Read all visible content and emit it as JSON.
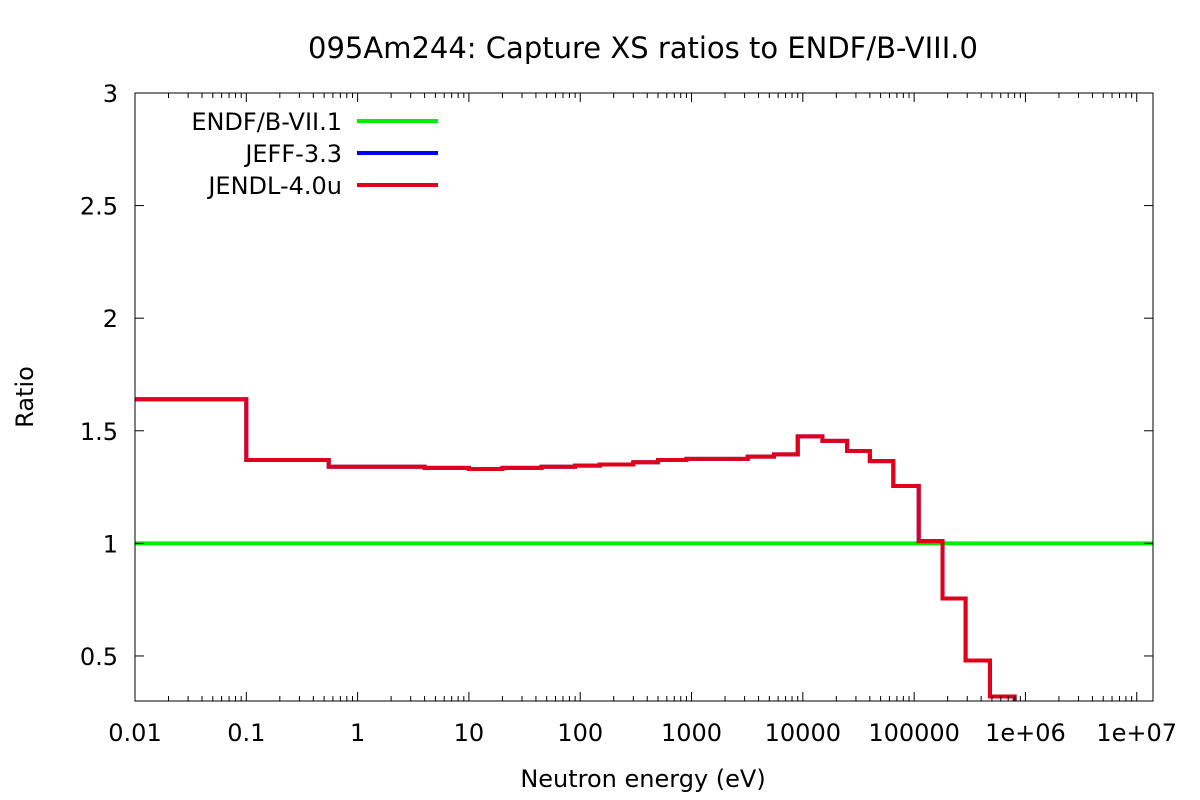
{
  "chart_data": {
    "type": "line",
    "title": "095Am244: Capture XS ratios to ENDF/B-VIII.0",
    "xlabel": "Neutron energy (eV)",
    "ylabel": "Ratio",
    "x_scale": "log",
    "xlim": [
      0.01,
      14000000
    ],
    "ylim": [
      0.3,
      3
    ],
    "grid": false,
    "legend_position": "top-left",
    "x_ticks": [
      {
        "value": 0.01,
        "label": "0.01"
      },
      {
        "value": 0.1,
        "label": "0.1"
      },
      {
        "value": 1,
        "label": "1"
      },
      {
        "value": 10,
        "label": "10"
      },
      {
        "value": 100,
        "label": "100"
      },
      {
        "value": 1000,
        "label": "1000"
      },
      {
        "value": 10000,
        "label": "10000"
      },
      {
        "value": 100000,
        "label": "100000"
      },
      {
        "value": 1000000,
        "label": "1e+06"
      },
      {
        "value": 10000000,
        "label": "1e+07"
      }
    ],
    "y_ticks": [
      {
        "value": 0.5,
        "label": "0.5"
      },
      {
        "value": 1,
        "label": "1"
      },
      {
        "value": 1.5,
        "label": "1.5"
      },
      {
        "value": 2,
        "label": "2"
      },
      {
        "value": 2.5,
        "label": "2.5"
      },
      {
        "value": 3,
        "label": "3"
      }
    ],
    "series": [
      {
        "name": "ENDF/B-VII.1",
        "color": "#00ee00",
        "step": true,
        "x": [
          0.01,
          14000000
        ],
        "y": [
          1.0,
          1.0
        ]
      },
      {
        "name": "JEFF-3.3",
        "color": "#0000ee",
        "step": true,
        "x": [
          0.01,
          0.1,
          0.55,
          4.0,
          10.0,
          20.0,
          45.0,
          90.0,
          150.0,
          300.0,
          500.0,
          900.0,
          3200.0,
          5500.0,
          9000.0,
          15000.0,
          25000.0,
          40000.0,
          65000.0,
          110000.0,
          180000.0,
          290000.0,
          480000.0,
          800000.0
        ],
        "y": [
          1.64,
          1.37,
          1.34,
          1.335,
          1.33,
          1.335,
          1.34,
          1.345,
          1.35,
          1.36,
          1.37,
          1.375,
          1.385,
          1.395,
          1.475,
          1.455,
          1.41,
          1.365,
          1.255,
          1.01,
          0.755,
          0.48,
          0.32,
          0.3
        ]
      },
      {
        "name": "JENDL-4.0u",
        "color": "#e0001a",
        "step": true,
        "x": [
          0.01,
          0.1,
          0.55,
          4.0,
          10.0,
          20.0,
          45.0,
          90.0,
          150.0,
          300.0,
          500.0,
          900.0,
          3200.0,
          5500.0,
          9000.0,
          15000.0,
          25000.0,
          40000.0,
          65000.0,
          110000.0,
          180000.0,
          290000.0,
          480000.0,
          800000.0
        ],
        "y": [
          1.64,
          1.37,
          1.34,
          1.335,
          1.33,
          1.335,
          1.34,
          1.345,
          1.35,
          1.36,
          1.37,
          1.375,
          1.385,
          1.395,
          1.475,
          1.455,
          1.41,
          1.365,
          1.255,
          1.01,
          0.755,
          0.48,
          0.32,
          0.3
        ]
      }
    ]
  }
}
